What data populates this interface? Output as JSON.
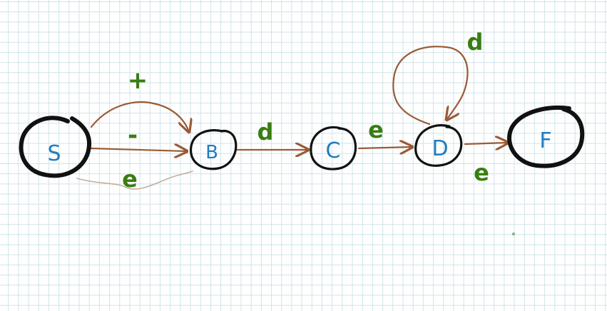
{
  "states": [
    {
      "id": "S",
      "label": "S",
      "role": "start"
    },
    {
      "id": "B",
      "label": "B",
      "role": "normal"
    },
    {
      "id": "C",
      "label": "C",
      "role": "normal"
    },
    {
      "id": "D",
      "label": "D",
      "role": "normal"
    },
    {
      "id": "F",
      "label": "F",
      "role": "final"
    }
  ],
  "transitions": [
    {
      "from": "S",
      "to": "B",
      "label": "+"
    },
    {
      "from": "S",
      "to": "B",
      "label": "-"
    },
    {
      "from": "S",
      "to": "B",
      "label": "e"
    },
    {
      "from": "B",
      "to": "C",
      "label": "d"
    },
    {
      "from": "C",
      "to": "D",
      "label": "e"
    },
    {
      "from": "D",
      "to": "D",
      "label": "d"
    },
    {
      "from": "D",
      "to": "F",
      "label": "e"
    }
  ],
  "colors": {
    "grid": "#cfe3ea",
    "state_outline": "#111111",
    "state_text": "#1f7dbf",
    "edge": "#9a5a36",
    "edge_label": "#3a7d12"
  }
}
